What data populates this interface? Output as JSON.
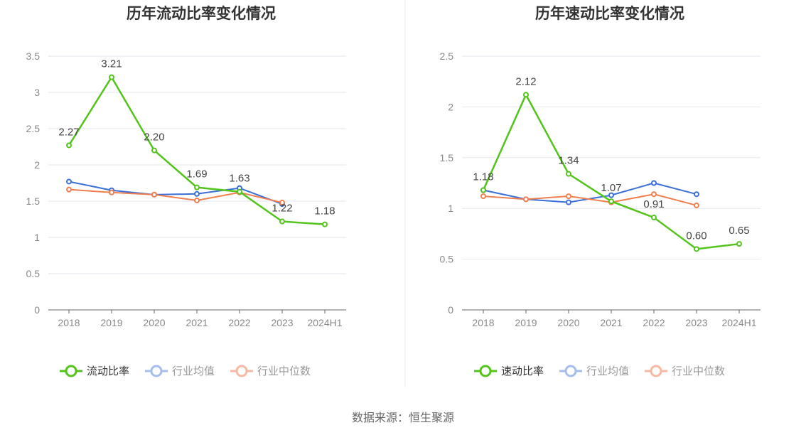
{
  "chart_data": [
    {
      "type": "line",
      "title": "历年流动比率变化情况",
      "categories": [
        "2018",
        "2019",
        "2020",
        "2021",
        "2022",
        "2023",
        "2024H1"
      ],
      "ylim": [
        0,
        3.5
      ],
      "yticks": [
        "0",
        "0.5",
        "1",
        "1.5",
        "2",
        "2.5",
        "3",
        "3.5"
      ],
      "grid": true,
      "legend_position": "bottom",
      "series": [
        {
          "name": "流动比率",
          "color": "#52c41a",
          "values": [
            2.27,
            3.21,
            2.2,
            1.69,
            1.63,
            1.22,
            1.18
          ],
          "labels": [
            "2.27",
            "3.21",
            "2.20",
            "1.69",
            "1.63",
            "1.22",
            "1.18"
          ]
        },
        {
          "name": "行业均值",
          "color": "#3a6fd8",
          "values": [
            1.77,
            1.65,
            1.59,
            1.6,
            1.68,
            1.46,
            null
          ]
        },
        {
          "name": "行业中位数",
          "color": "#f07f50",
          "values": [
            1.66,
            1.62,
            1.59,
            1.51,
            1.62,
            1.48,
            null
          ]
        }
      ]
    },
    {
      "type": "line",
      "title": "历年速动比率变化情况",
      "categories": [
        "2018",
        "2019",
        "2020",
        "2021",
        "2022",
        "2023",
        "2024H1"
      ],
      "ylim": [
        0,
        2.5
      ],
      "yticks": [
        "0",
        "0.5",
        "1",
        "1.5",
        "2",
        "2.5"
      ],
      "grid": true,
      "legend_position": "bottom",
      "series": [
        {
          "name": "速动比率",
          "color": "#52c41a",
          "values": [
            1.18,
            2.12,
            1.34,
            1.07,
            0.91,
            0.6,
            0.65
          ],
          "labels": [
            "1.18",
            "2.12",
            "1.34",
            "1.07",
            "0.91",
            "0.60",
            "0.65"
          ]
        },
        {
          "name": "行业均值",
          "color": "#3a6fd8",
          "values": [
            1.18,
            1.09,
            1.06,
            1.13,
            1.25,
            1.14,
            null
          ]
        },
        {
          "name": "行业中位数",
          "color": "#f07f50",
          "values": [
            1.12,
            1.09,
            1.12,
            1.06,
            1.14,
            1.03,
            null
          ]
        }
      ]
    }
  ],
  "source_text": "数据来源：恒生聚源"
}
